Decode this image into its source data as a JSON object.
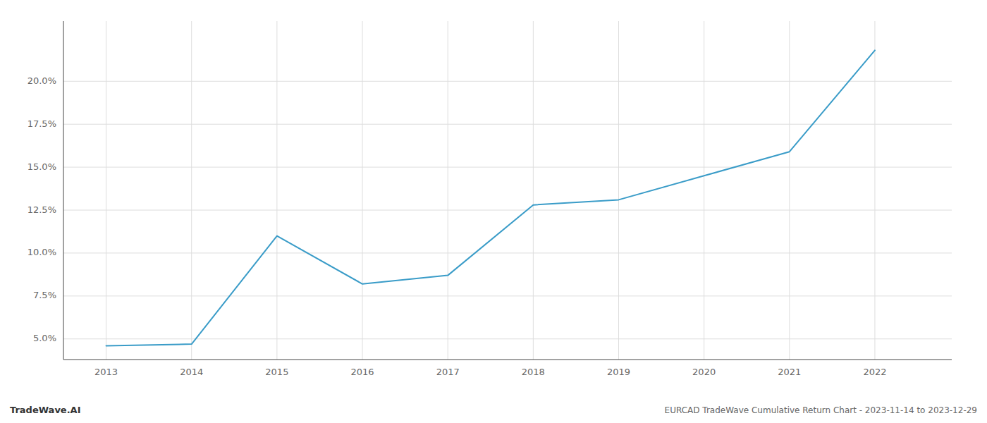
{
  "chart_data": {
    "type": "line",
    "title": "EURCAD TradeWave Cumulative Return Chart - 2023-11-14 to 2023-12-29",
    "annotations": [
      "TradeWave.AI"
    ],
    "x": [
      2013,
      2014,
      2015,
      2016,
      2017,
      2018,
      2019,
      2020,
      2021,
      2022
    ],
    "values": [
      4.6,
      4.7,
      11.0,
      8.2,
      8.7,
      12.8,
      13.1,
      14.5,
      15.9,
      21.8
    ],
    "color": "#3a9cc8",
    "xlim": [
      2012.5,
      2022.9
    ],
    "ylim": [
      3.8,
      23.5
    ],
    "xticks": [
      2013,
      2014,
      2015,
      2016,
      2017,
      2018,
      2019,
      2020,
      2021,
      2022
    ],
    "yticks": [
      {
        "value": 5.0,
        "label": "5.0%"
      },
      {
        "value": 7.5,
        "label": "7.5%"
      },
      {
        "value": 10.0,
        "label": "10.0%"
      },
      {
        "value": 12.5,
        "label": "12.5%"
      },
      {
        "value": 15.0,
        "label": "15.0%"
      },
      {
        "value": 17.5,
        "label": "17.5%"
      },
      {
        "value": 20.0,
        "label": "20.0%"
      }
    ],
    "grid": true
  }
}
